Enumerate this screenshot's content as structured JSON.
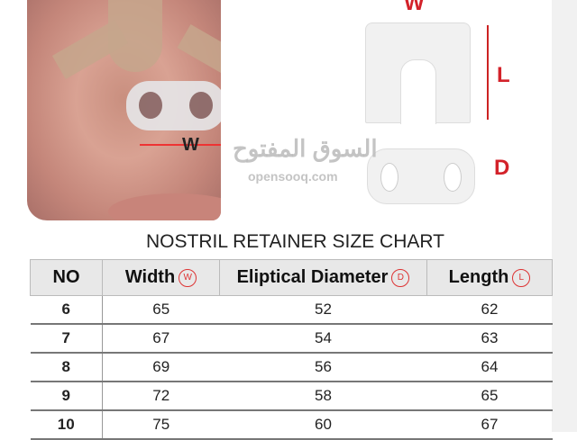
{
  "image": {
    "photo_label": "W",
    "diagram_labels": {
      "width": "W",
      "length": "L",
      "diameter": "D"
    }
  },
  "title": "NOSTRIL RETAINER SIZE CHART",
  "table": {
    "headers": [
      {
        "label": "NO"
      },
      {
        "label": "Width",
        "badge": "W"
      },
      {
        "label": "Eliptical Diameter",
        "badge": "D"
      },
      {
        "label": "Length",
        "badge": "L"
      }
    ],
    "rows": [
      [
        "6",
        "65",
        "52",
        "62"
      ],
      [
        "7",
        "67",
        "54",
        "63"
      ],
      [
        "8",
        "69",
        "56",
        "64"
      ],
      [
        "9",
        "72",
        "58",
        "65"
      ],
      [
        "10",
        "75",
        "60",
        "67"
      ]
    ]
  },
  "watermark": {
    "arabic": "السوق المفتوح",
    "latin": "opensooq.com"
  },
  "colors": {
    "accent": "#d3222a"
  }
}
